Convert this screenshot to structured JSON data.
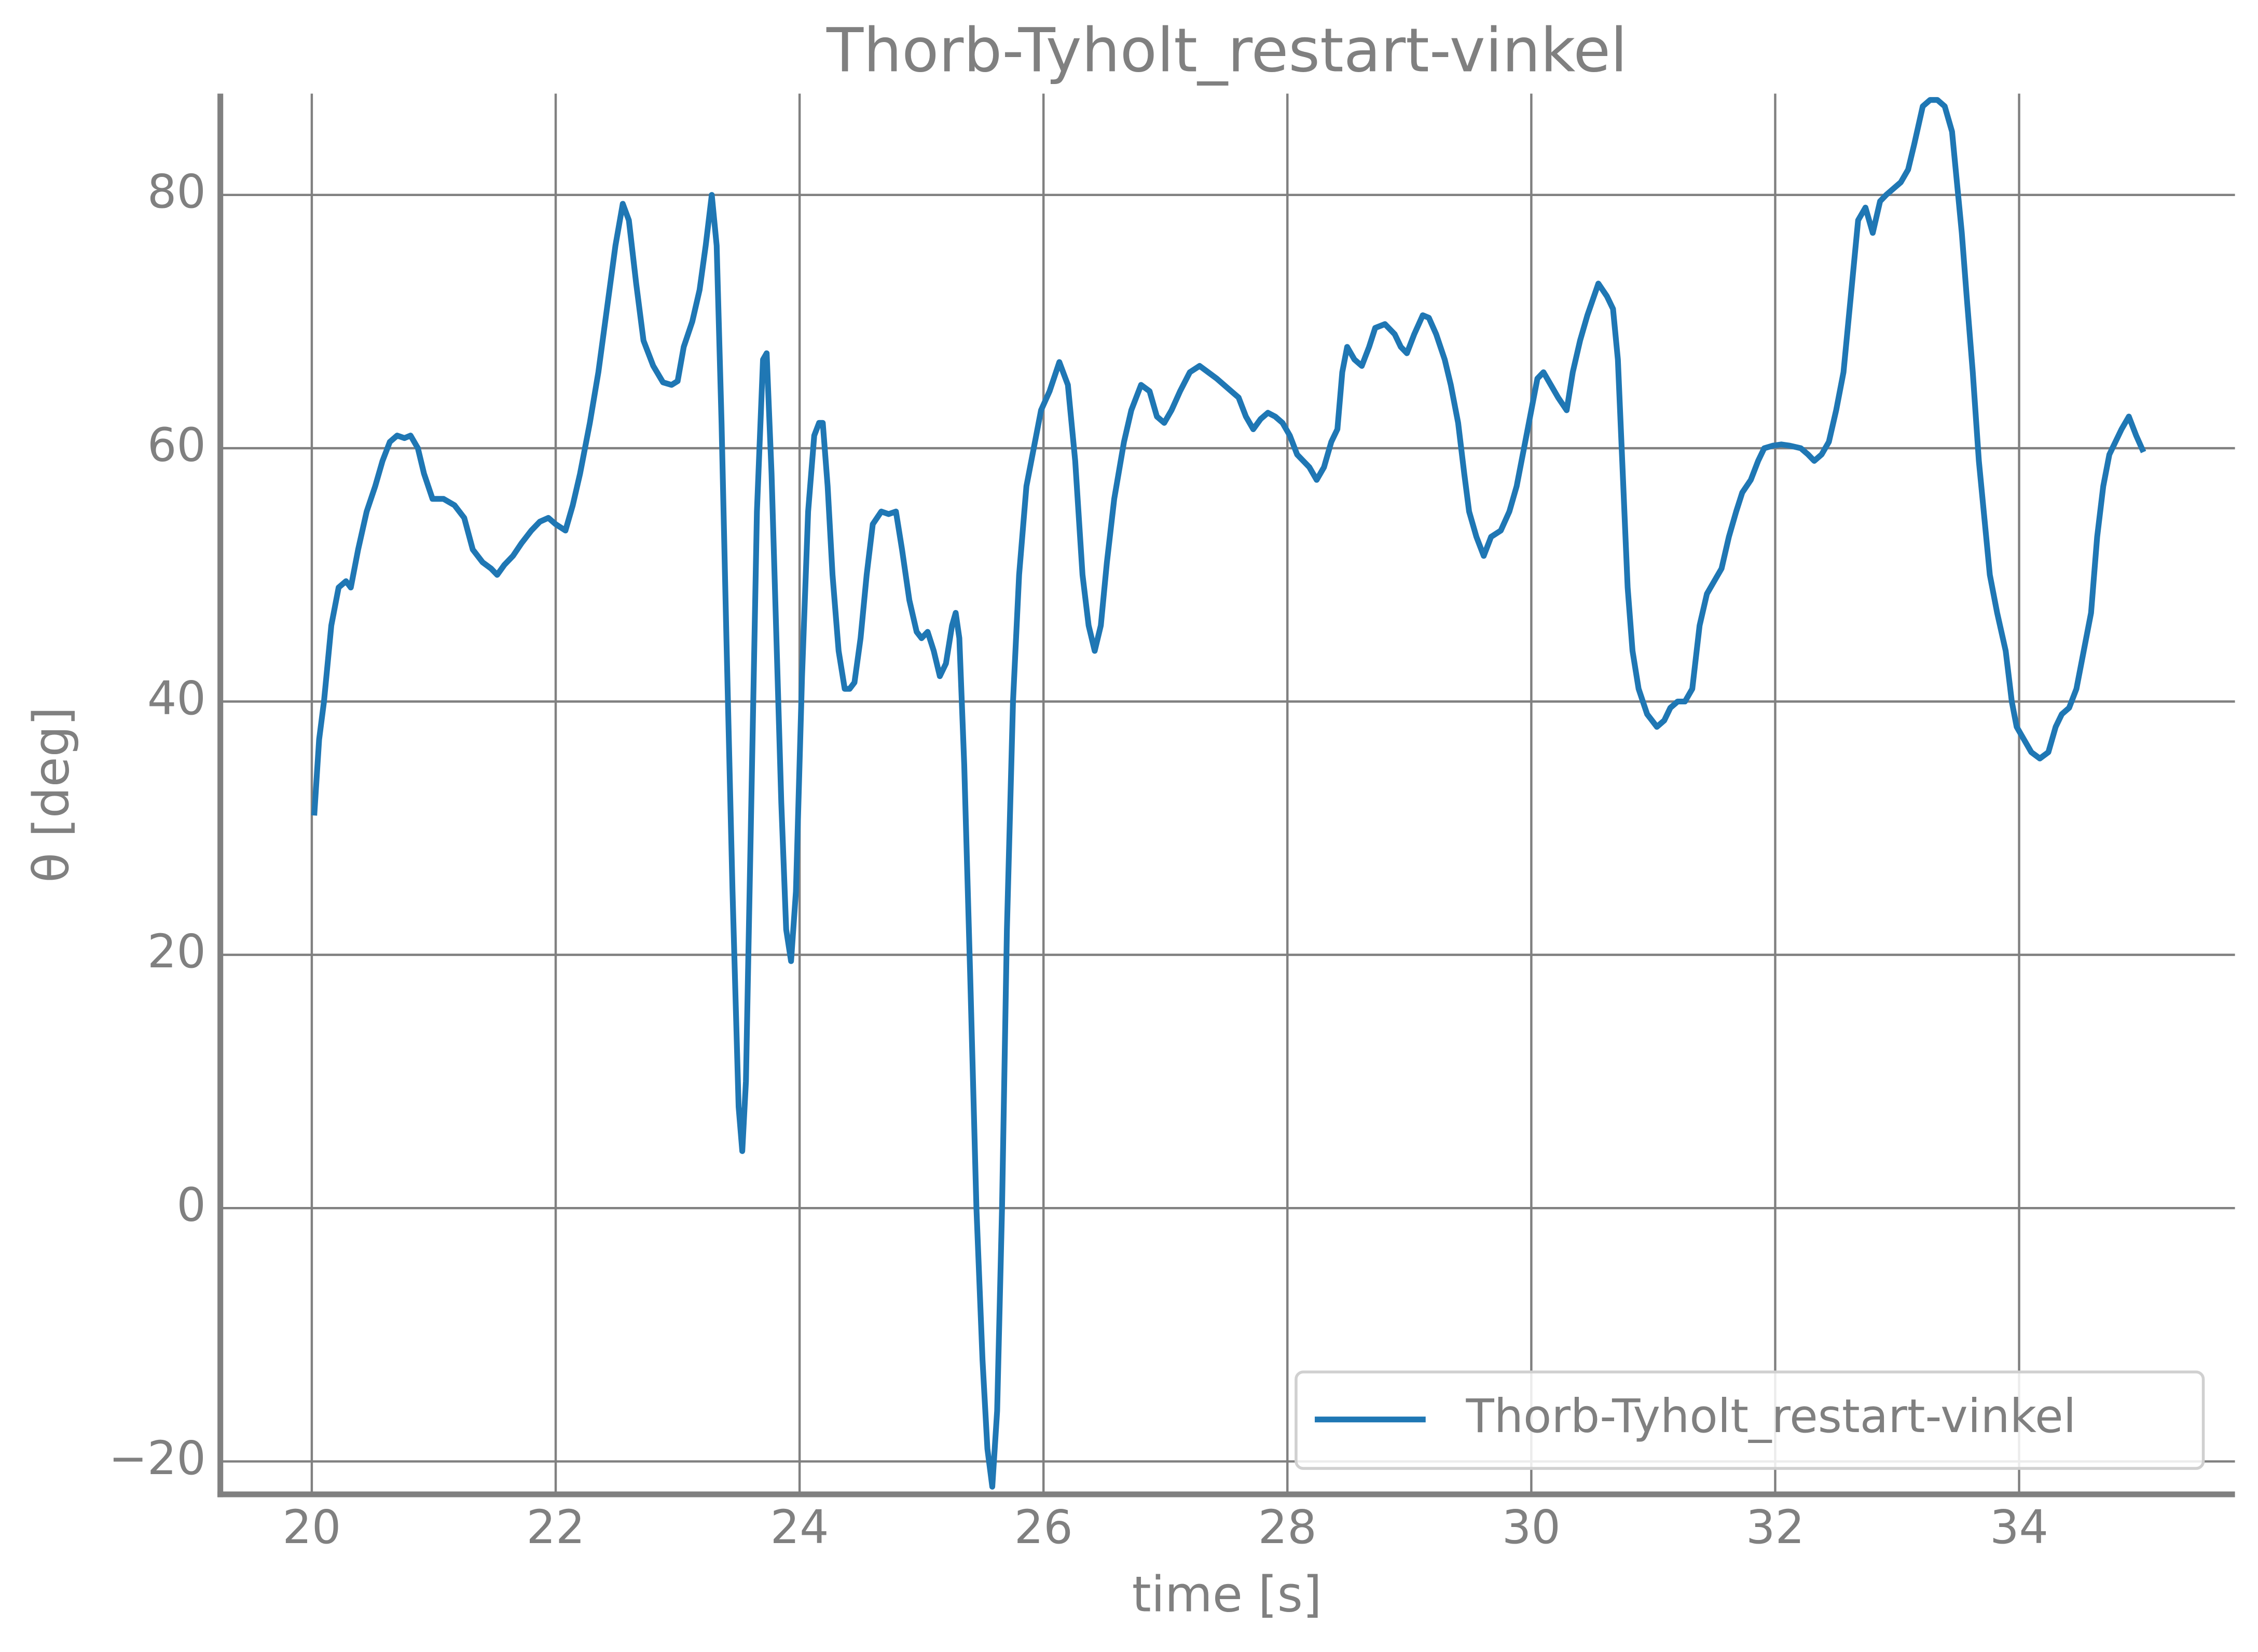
{
  "chart_data": {
    "type": "line",
    "title": "Thorb-Tyholt_restart-vinkel",
    "xlabel": "time [s]",
    "ylabel": "θ [deg]",
    "xlim": [
      19.25,
      35.77
    ],
    "ylim": [
      -22.6,
      88
    ],
    "xticks": [
      20,
      22,
      24,
      26,
      28,
      30,
      32,
      34
    ],
    "yticks": [
      {
        "value": -20,
        "label": "−20"
      },
      0,
      20,
      40,
      60,
      80
    ],
    "grid": true,
    "legend": "lower right",
    "x": [
      20.02,
      20.06,
      20.1,
      20.16,
      20.22,
      20.28,
      20.32,
      20.38,
      20.45,
      20.52,
      20.58,
      20.64,
      20.7,
      20.76,
      20.81,
      20.87,
      20.92,
      20.99,
      21.08,
      21.17,
      21.25,
      21.32,
      21.4,
      21.47,
      21.52,
      21.58,
      21.65,
      21.72,
      21.8,
      21.87,
      21.94,
      22.0,
      22.08,
      22.14,
      22.2,
      22.28,
      22.35,
      22.42,
      22.49,
      22.55,
      22.6,
      22.66,
      22.72,
      22.8,
      22.88,
      22.95,
      23.0,
      23.05,
      23.12,
      23.18,
      23.23,
      23.28,
      23.32,
      23.36,
      23.4,
      23.45,
      23.5,
      23.53,
      23.56,
      23.6,
      23.65,
      23.7,
      23.73,
      23.77,
      23.81,
      23.85,
      23.89,
      23.93,
      23.97,
      24.02,
      24.07,
      24.12,
      24.16,
      24.19,
      24.23,
      24.27,
      24.32,
      24.37,
      24.41,
      24.45,
      24.5,
      24.55,
      24.6,
      24.67,
      24.73,
      24.79,
      24.84,
      24.9,
      24.96,
      25.0,
      25.05,
      25.1,
      25.15,
      25.2,
      25.25,
      25.28,
      25.31,
      25.35,
      25.4,
      25.45,
      25.5,
      25.54,
      25.58,
      25.62,
      25.66,
      25.7,
      25.75,
      25.8,
      25.86,
      25.92,
      25.98,
      26.05,
      26.13,
      26.2,
      26.26,
      26.32,
      26.37,
      26.42,
      26.47,
      26.52,
      26.58,
      26.66,
      26.72,
      26.8,
      26.87,
      26.93,
      26.99,
      27.05,
      27.12,
      27.2,
      27.28,
      27.35,
      27.42,
      27.48,
      27.54,
      27.6,
      27.66,
      27.72,
      27.78,
      27.84,
      27.9,
      27.96,
      28.02,
      28.08,
      28.13,
      28.18,
      28.24,
      28.3,
      28.36,
      28.41,
      28.45,
      28.49,
      28.55,
      28.61,
      28.67,
      28.72,
      28.8,
      28.88,
      28.93,
      28.98,
      29.04,
      29.11,
      29.16,
      29.22,
      29.29,
      29.34,
      29.4,
      29.45,
      29.49,
      29.55,
      29.61,
      29.67,
      29.75,
      29.82,
      29.88,
      29.94,
      30.0,
      30.05,
      30.1,
      30.16,
      30.22,
      30.29,
      30.34,
      30.4,
      30.46,
      30.55,
      30.62,
      30.67,
      30.71,
      30.75,
      30.79,
      30.83,
      30.88,
      30.95,
      31.03,
      31.09,
      31.14,
      31.2,
      31.26,
      31.32,
      31.38,
      31.44,
      31.5,
      31.56,
      31.62,
      31.68,
      31.73,
      31.8,
      31.86,
      31.91,
      31.98,
      32.05,
      32.12,
      32.21,
      32.27,
      32.32,
      32.38,
      32.44,
      32.5,
      32.56,
      32.62,
      32.68,
      32.74,
      32.8,
      32.86,
      32.91,
      32.97,
      33.03,
      33.09,
      33.14,
      33.21,
      33.27,
      33.33,
      33.39,
      33.45,
      33.49,
      33.53,
      33.57,
      33.62,
      33.67,
      33.72,
      33.76,
      33.82,
      33.89,
      33.94,
      33.98,
      34.04,
      34.1,
      34.17,
      34.24,
      34.3,
      34.35,
      34.41,
      34.47,
      34.53,
      34.59,
      34.64,
      34.69,
      34.74,
      34.79,
      34.84,
      34.9,
      34.96,
      35.02
    ],
    "series": [
      {
        "name": "Thorb-Tyholt_restart-vinkel",
        "color": "#1f77b4",
        "values": [
          31,
          37,
          40,
          46,
          49,
          49.5,
          49,
          52,
          55,
          57,
          59,
          60.5,
          61,
          60.8,
          61,
          60,
          58,
          56,
          56,
          55.5,
          54.5,
          52,
          51,
          50.5,
          50,
          50.8,
          51.5,
          52.5,
          53.5,
          54.2,
          54.5,
          54,
          53.5,
          55.5,
          58,
          62,
          66,
          71,
          76,
          79.3,
          78,
          73,
          68.5,
          66.5,
          65.2,
          65,
          65.3,
          68,
          70,
          72.5,
          76,
          80,
          76,
          62,
          45,
          25,
          8,
          4.5,
          10,
          30,
          55,
          67,
          67.5,
          58,
          45,
          32,
          22,
          19.5,
          25,
          42,
          55,
          61,
          62,
          62,
          57,
          50,
          44,
          41,
          41,
          41.5,
          45,
          50,
          54,
          55,
          54.8,
          55,
          52,
          48,
          45.5,
          45,
          45.5,
          44,
          42,
          43,
          46,
          47,
          45,
          35,
          18,
          0,
          -12,
          -19,
          -22,
          -16,
          0,
          22,
          40,
          50,
          57,
          60,
          63,
          64.5,
          66.8,
          65,
          59,
          50,
          46,
          44,
          46,
          51,
          56,
          60.5,
          63,
          65,
          64.5,
          62.5,
          62,
          63,
          64.5,
          66,
          66.5,
          66,
          65.5,
          65,
          64.5,
          64,
          62.5,
          61.5,
          62.3,
          62.8,
          62.5,
          62,
          61,
          59.5,
          59,
          58.5,
          57.5,
          58.5,
          60.5,
          61.5,
          66,
          68,
          67,
          66.5,
          68,
          69.5,
          69.8,
          69,
          68,
          67.5,
          69,
          70.5,
          70.3,
          69,
          67,
          65,
          62,
          58,
          55,
          53,
          51.5,
          53,
          53.5,
          55,
          57,
          60,
          63,
          65.5,
          66,
          65,
          64,
          63,
          66,
          68.5,
          70.5,
          73,
          72,
          71,
          67,
          58,
          49,
          44,
          41,
          39,
          38,
          38.5,
          39.5,
          40,
          40,
          41,
          46,
          48.5,
          49.5,
          50.5,
          53,
          55,
          56.5,
          57.5,
          59,
          60,
          60.2,
          60.3,
          60.2,
          60,
          59.5,
          59,
          59.5,
          60.5,
          63,
          66,
          72,
          78,
          79,
          77,
          79.5,
          80,
          80.5,
          81,
          82,
          84,
          87,
          87.5,
          87.5,
          87,
          85,
          81,
          77,
          72,
          66,
          59,
          54,
          50,
          47,
          44,
          40,
          38,
          37,
          36,
          35.5,
          36,
          38,
          39,
          39.5,
          41,
          44,
          47,
          53,
          57,
          59.5,
          60.5,
          61.5,
          62.5,
          61,
          59.7
        ]
      }
    ]
  }
}
